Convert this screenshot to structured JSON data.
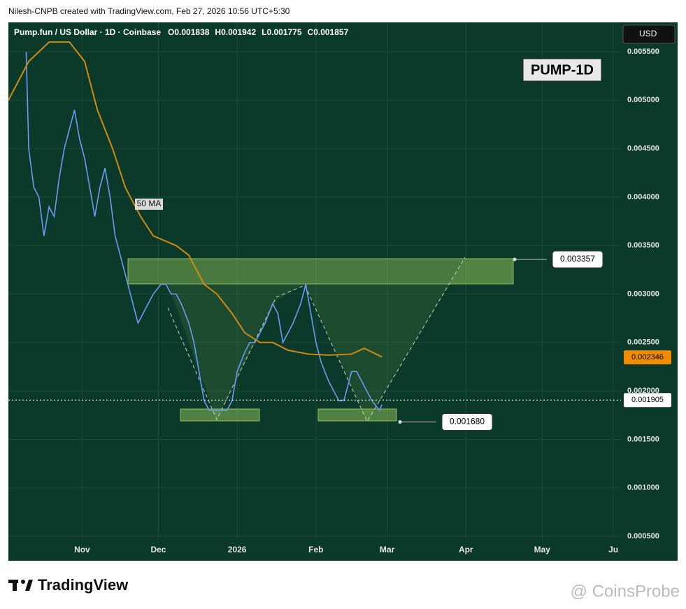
{
  "header": {
    "attribution": "Nilesh-CNPB created with TradingView.com, Feb 27, 2026 10:56 UTC+5:30"
  },
  "chart_data": {
    "type": "line",
    "symbol": "Pump.fun / US Dollar · 1D · Coinbase",
    "ohlc": [
      "O0.001838",
      "H0.001942",
      "L0.001775",
      "C0.001857"
    ],
    "currency": "USD",
    "badge": "PUMP-1D",
    "ma_label": "50 MA",
    "series": [
      {
        "color": "#6b9cf2",
        "x": [
          -22,
          -21,
          -19,
          -17,
          -15,
          -13,
          -11,
          -9,
          -7,
          -5,
          -3,
          -1,
          1,
          3,
          5,
          7,
          9,
          11,
          13,
          15,
          17,
          20,
          22,
          24,
          26,
          28,
          31,
          33,
          35,
          37,
          39,
          42,
          44,
          46,
          48,
          50,
          53,
          55,
          57,
          59,
          61,
          64,
          66,
          68,
          70,
          72,
          75,
          77,
          79,
          81,
          83,
          86,
          88,
          90,
          92,
          94,
          97,
          99,
          101,
          103,
          106,
          108,
          110,
          112,
          114,
          117,
          118
        ],
        "values": [
          0.0055,
          0.0045,
          0.0041,
          0.004,
          0.0036,
          0.0039,
          0.0038,
          0.0042,
          0.0045,
          0.0047,
          0.0049,
          0.0046,
          0.0044,
          0.0041,
          0.0038,
          0.0041,
          0.0043,
          0.004,
          0.0036,
          0.0034,
          0.0032,
          0.0029,
          0.0027,
          0.0028,
          0.0029,
          0.003,
          0.0031,
          0.0031,
          0.003,
          0.003,
          0.0029,
          0.0027,
          0.0025,
          0.0022,
          0.0019,
          0.0018,
          0.0018,
          0.0018,
          0.0018,
          0.0019,
          0.0022,
          0.0024,
          0.0025,
          0.0025,
          0.0026,
          0.0027,
          0.0029,
          0.0028,
          0.0025,
          0.0026,
          0.0027,
          0.0029,
          0.0031,
          0.0028,
          0.0025,
          0.0023,
          0.0021,
          0.002,
          0.0019,
          0.0019,
          0.0022,
          0.0022,
          0.0021,
          0.002,
          0.0019,
          0.0018,
          0.00186
        ]
      },
      {
        "color": "#d08a12",
        "x": [
          -29,
          -21,
          -13,
          -5,
          1,
          6,
          12,
          17,
          23,
          28,
          37,
          42,
          48,
          53,
          59,
          64,
          70,
          75,
          81,
          89,
          97,
          106,
          111,
          118
        ],
        "values": [
          0.005,
          0.0054,
          0.0056,
          0.0056,
          0.0054,
          0.0049,
          0.0045,
          0.0041,
          0.0038,
          0.0036,
          0.0035,
          0.0034,
          0.0031,
          0.003,
          0.0028,
          0.0026,
          0.0025,
          0.0025,
          0.00242,
          0.00238,
          0.00237,
          0.00238,
          0.00244,
          0.00235
        ]
      }
    ],
    "ma_price": 0.002346,
    "ma_price_color": "#f08c00",
    "current_price": 0.001905,
    "targets": [
      0.003357,
      {
        "value": 0.00168,
        "label": "0.001680"
      }
    ],
    "xlim": [
      -29,
      212
    ],
    "xticks": [
      {
        "value": 0,
        "label": "Nov"
      },
      {
        "value": 30,
        "label": "Dec"
      },
      {
        "value": 61,
        "label": "2026"
      },
      {
        "value": 92,
        "label": "Feb"
      },
      {
        "value": 120,
        "label": "Mar"
      },
      {
        "value": 151,
        "label": "Apr"
      },
      {
        "value": 181,
        "label": "May"
      },
      {
        "value": 209,
        "label": "Ju"
      }
    ],
    "ylim": [
      0.000262,
      0.005803
    ],
    "yticks": [
      {
        "value": 0.0005,
        "label": "0.000500"
      },
      {
        "value": 0.001,
        "label": "0.001000"
      },
      {
        "value": 0.0015,
        "label": "0.001500"
      },
      {
        "value": 0.002,
        "label": "0.002000"
      },
      {
        "value": 0.0025,
        "label": "0.002500"
      },
      {
        "value": 0.003,
        "label": "0.003000"
      },
      {
        "value": 0.0035,
        "label": "0.003500"
      },
      {
        "value": 0.004,
        "label": "0.004000"
      },
      {
        "value": 0.0045,
        "label": "0.004500"
      },
      {
        "value": 0.005,
        "label": "0.005000"
      },
      {
        "value": 0.0055,
        "label": "0.005500"
      }
    ],
    "grid": true
  },
  "footer": {
    "brand": "TradingView",
    "watermark": "@ CoinsProbe"
  }
}
